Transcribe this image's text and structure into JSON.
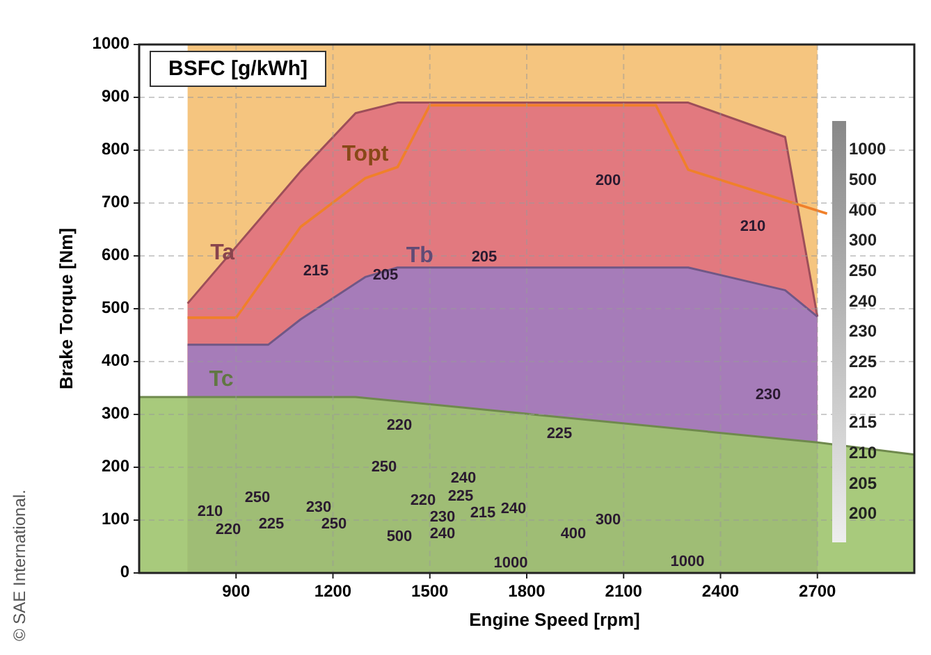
{
  "chart_data": {
    "type": "area",
    "title": "BSFC [g/kWh]",
    "xlabel": "Engine Speed [rpm]",
    "ylabel": "Brake Torque [Nm]",
    "xlim": [
      600,
      3000
    ],
    "ylim": [
      0,
      1000
    ],
    "xticks": [
      900,
      1200,
      1500,
      1800,
      2100,
      2400,
      2700
    ],
    "yticks": [
      0,
      100,
      200,
      300,
      400,
      500,
      600,
      700,
      800,
      900,
      1000
    ],
    "grid": true,
    "bands": [
      {
        "axis": "x",
        "from": 750,
        "to": 2700,
        "color": "#f5c57f"
      }
    ],
    "series": [
      {
        "name": "Ta",
        "color": "#e0707f",
        "x": [
          750,
          1100,
          1270,
          1400,
          2300,
          2600,
          2700
        ],
        "values": [
          510,
          760,
          870,
          890,
          890,
          825,
          485
        ]
      },
      {
        "name": "Tb",
        "color": "#a07cc0",
        "x": [
          750,
          1000,
          1100,
          1300,
          1400,
          2300,
          2600,
          2700
        ],
        "values": [
          432,
          432,
          480,
          560,
          578,
          578,
          535,
          485
        ]
      },
      {
        "name": "Tc",
        "color": "#9fc46e",
        "x": [
          600,
          1270,
          2700,
          3000
        ],
        "values": [
          333,
          333,
          247,
          224
        ]
      },
      {
        "name": "Topt",
        "type": "line",
        "color": "#f0802a",
        "x": [
          750,
          900,
          1100,
          1300,
          1400,
          1500,
          2200,
          2300,
          2730
        ],
        "values": [
          483,
          483,
          655,
          747,
          768,
          885,
          885,
          763,
          680
        ]
      }
    ],
    "annotations": [
      "© SAE International.",
      "200",
      "215",
      "205",
      "205",
      "210",
      "230",
      "220",
      "225",
      "250",
      "240",
      "250",
      "220",
      "225",
      "215",
      "240",
      "230",
      "210",
      "220",
      "225",
      "230",
      "250",
      "500",
      "240",
      "400",
      "300",
      "1000",
      "1000",
      "1000",
      "500",
      "400",
      "300",
      "250",
      "240",
      "230",
      "225",
      "220",
      "215",
      "210",
      "205",
      "200"
    ]
  }
}
